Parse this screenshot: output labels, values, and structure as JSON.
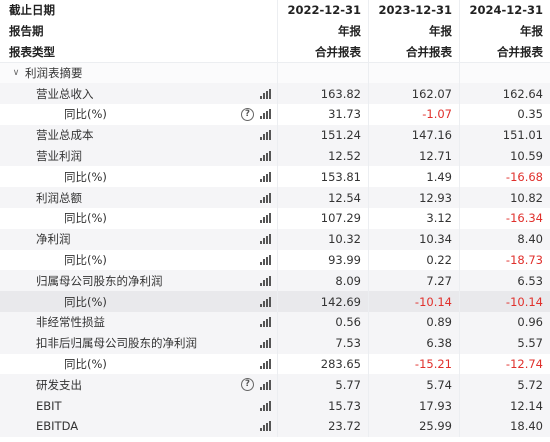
{
  "header": {
    "rows": [
      {
        "label": "截止日期",
        "cols": [
          "2022-12-31",
          "2023-12-31",
          "2024-12-31"
        ]
      },
      {
        "label": "报告期",
        "cols": [
          "年报",
          "年报",
          "年报"
        ]
      },
      {
        "label": "报表类型",
        "cols": [
          "合并报表",
          "合并报表",
          "合并报表"
        ]
      }
    ]
  },
  "section": {
    "label": "利润表摘要"
  },
  "rows": [
    {
      "label": "营业总收入",
      "values": [
        "163.82",
        "162.07",
        "162.64"
      ]
    },
    {
      "label": "同比(%)",
      "values": [
        "31.73",
        "-1.07",
        "0.35"
      ]
    },
    {
      "label": "营业总成本",
      "values": [
        "151.24",
        "147.16",
        "151.01"
      ]
    },
    {
      "label": "营业利润",
      "values": [
        "12.52",
        "12.71",
        "10.59"
      ]
    },
    {
      "label": "同比(%)",
      "values": [
        "153.81",
        "1.49",
        "-16.68"
      ]
    },
    {
      "label": "利润总额",
      "values": [
        "12.54",
        "12.93",
        "10.82"
      ]
    },
    {
      "label": "同比(%)",
      "values": [
        "107.29",
        "3.12",
        "-16.34"
      ]
    },
    {
      "label": "净利润",
      "values": [
        "10.32",
        "10.34",
        "8.40"
      ]
    },
    {
      "label": "同比(%)",
      "values": [
        "93.99",
        "0.22",
        "-18.73"
      ]
    },
    {
      "label": "归属母公司股东的净利润",
      "values": [
        "8.09",
        "7.27",
        "6.53"
      ]
    },
    {
      "label": "同比(%)",
      "values": [
        "142.69",
        "-10.14",
        "-10.14"
      ]
    },
    {
      "label": "非经常性损益",
      "values": [
        "0.56",
        "0.89",
        "0.96"
      ]
    },
    {
      "label": "扣非后归属母公司股东的净利润",
      "values": [
        "7.53",
        "6.38",
        "5.57"
      ]
    },
    {
      "label": "同比(%)",
      "values": [
        "283.65",
        "-15.21",
        "-12.74"
      ]
    },
    {
      "label": "研发支出",
      "values": [
        "5.77",
        "5.74",
        "5.72"
      ]
    },
    {
      "label": "EBIT",
      "values": [
        "15.73",
        "17.93",
        "12.14"
      ]
    },
    {
      "label": "EBITDA",
      "values": [
        "23.72",
        "25.99",
        "18.40"
      ]
    }
  ],
  "icons": {
    "chart": "bar-chart-icon",
    "help": "question-circle-icon",
    "expand": "chevron-down-icon"
  },
  "help_glyph": "?",
  "chevron_glyph": "∨",
  "colors": {
    "negative": "#e0302c",
    "row_alt": "#f5f5f7",
    "row_highlight": "#e9e9ec"
  }
}
